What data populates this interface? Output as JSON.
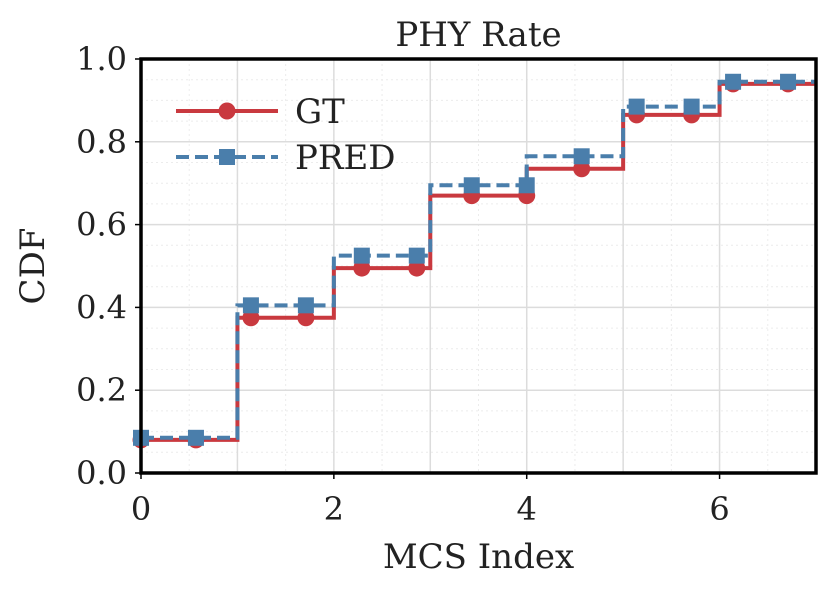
{
  "chart_data": {
    "type": "line",
    "step": "post",
    "title": "PHY Rate",
    "xlabel": "MCS Index",
    "ylabel": "CDF",
    "xlim": [
      0,
      7
    ],
    "ylim": [
      0,
      1
    ],
    "xticks": [
      0,
      2,
      4,
      6
    ],
    "xtick_labels": [
      "0",
      "2",
      "4",
      "6"
    ],
    "yticks": [
      0,
      0.2,
      0.4,
      0.6,
      0.8,
      1.0
    ],
    "ytick_labels": [
      "0.0",
      "0.2",
      "0.4",
      "0.6",
      "0.8",
      "1.0"
    ],
    "grid": true,
    "legend_position": "top-left",
    "series": [
      {
        "name": "GT",
        "color": "#c9393f",
        "linestyle": "solid",
        "marker": "circle",
        "steps_x": [
          0,
          1,
          2,
          3,
          4,
          5,
          6,
          7
        ],
        "steps_y": [
          0.08,
          0.375,
          0.495,
          0.67,
          0.735,
          0.865,
          0.94,
          0.94
        ],
        "markers_x": [
          0,
          0.57,
          1.14,
          1.71,
          2.29,
          2.86,
          3.43,
          4.0,
          4.57,
          5.14,
          5.71,
          6.14,
          6.71
        ],
        "markers_y": [
          0.08,
          0.08,
          0.375,
          0.375,
          0.495,
          0.495,
          0.67,
          0.67,
          0.735,
          0.865,
          0.865,
          0.94,
          0.94
        ]
      },
      {
        "name": "PRED",
        "color": "#4a7eab",
        "linestyle": "dashed",
        "marker": "square",
        "steps_x": [
          0,
          1,
          2,
          3,
          4,
          5,
          6,
          7
        ],
        "steps_y": [
          0.085,
          0.405,
          0.525,
          0.695,
          0.765,
          0.885,
          0.945,
          0.945
        ],
        "markers_x": [
          0,
          0.57,
          1.14,
          1.71,
          2.29,
          2.86,
          3.43,
          4.0,
          4.57,
          5.14,
          5.71,
          6.14,
          6.71
        ],
        "markers_y": [
          0.085,
          0.085,
          0.405,
          0.405,
          0.525,
          0.525,
          0.695,
          0.695,
          0.765,
          0.885,
          0.885,
          0.945,
          0.945
        ]
      }
    ]
  }
}
